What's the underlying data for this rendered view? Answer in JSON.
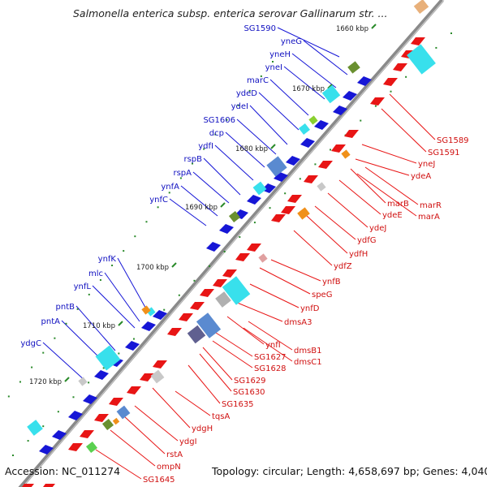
{
  "title": "Salmonella enterica subsp. enterica serovar Gallinarum str. ...",
  "footer": {
    "accession": "Accession: NC_011274",
    "summary": "Topology: circular; Length: 4,658,697 bp; Genes: 4,040"
  },
  "colors": {
    "backbone": "#8a8a8a",
    "forward_label": "#1010c0",
    "reverse_label": "#d01010",
    "forward_gene": "#1616d6",
    "reverse_gene": "#e81515",
    "tick": "#2a8a2a"
  },
  "kbp_ticks": [
    {
      "label": "1660 kbp"
    },
    {
      "label": "1670 kbp"
    },
    {
      "label": "1680 kbp"
    },
    {
      "label": "1690 kbp"
    },
    {
      "label": "1700 kbp"
    },
    {
      "label": "1710 kbp"
    },
    {
      "label": "1720 kbp"
    }
  ],
  "forward_genes": [
    "SG1590",
    "yneG",
    "yneH",
    "yneI",
    "marC",
    "ydeD",
    "ydeI",
    "SG1606",
    "dcp",
    "ydfI",
    "rspB",
    "rspA",
    "ynfA",
    "ynfC",
    "ynfK",
    "mlc",
    "ynfL",
    "pntB",
    "pntA",
    "ydgC"
  ],
  "reverse_genes": [
    "SG1589",
    "SG1591",
    "yneJ",
    "ydeA",
    "marR",
    "marA",
    "marB",
    "ydeE",
    "ydeJ",
    "ydfG",
    "ydfH",
    "ydfZ",
    "ynfB",
    "speG",
    "ynfD",
    "dmsA3",
    "ynfI",
    "dmsB1",
    "dmsC1",
    "SG1627",
    "SG1628",
    "SG1629",
    "SG1630",
    "SG1635",
    "tqsA",
    "ydgH",
    "ydgI",
    "rstA",
    "ompN",
    "SG1645"
  ]
}
